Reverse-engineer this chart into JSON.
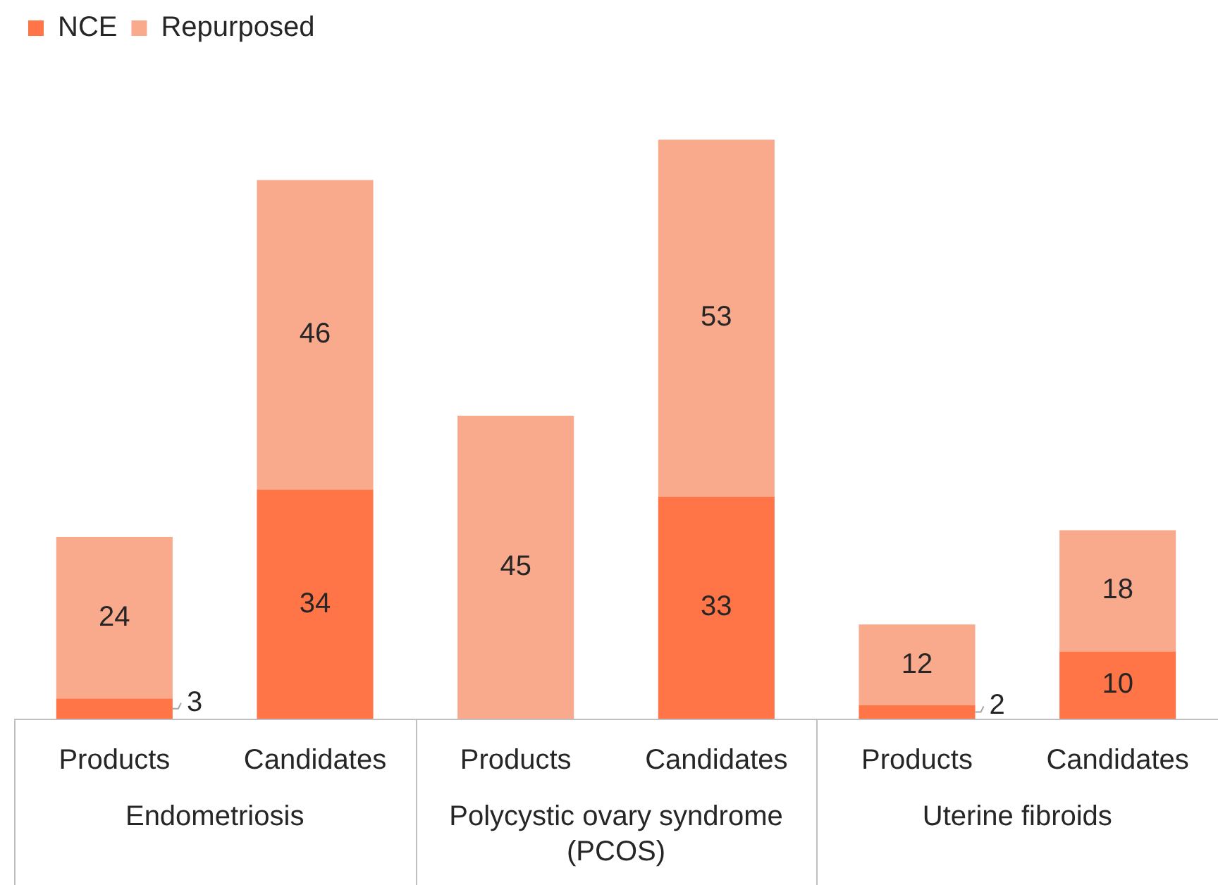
{
  "chart_data": {
    "type": "bar",
    "stacked": true,
    "categories": [
      "Products",
      "Candidates",
      "Products",
      "Candidates",
      "Products",
      "Candidates"
    ],
    "series": [
      {
        "name": "NCE",
        "color": "#ff7548",
        "values": [
          3,
          34,
          0,
          33,
          2,
          10
        ],
        "value_labels": [
          "3",
          "34",
          null,
          "33",
          "2",
          "10"
        ]
      },
      {
        "name": "Repurposed",
        "color": "#f9a98c",
        "values": [
          24,
          46,
          45,
          53,
          12,
          18
        ],
        "value_labels": [
          "24",
          "46",
          "45",
          "53",
          "12",
          "18"
        ]
      }
    ],
    "annotations": [
      "Endometriosis",
      "Polycystic ovary syndrome\n(PCOS)",
      "Uterine fibroids"
    ],
    "legend": "top left",
    "grid": false
  }
}
